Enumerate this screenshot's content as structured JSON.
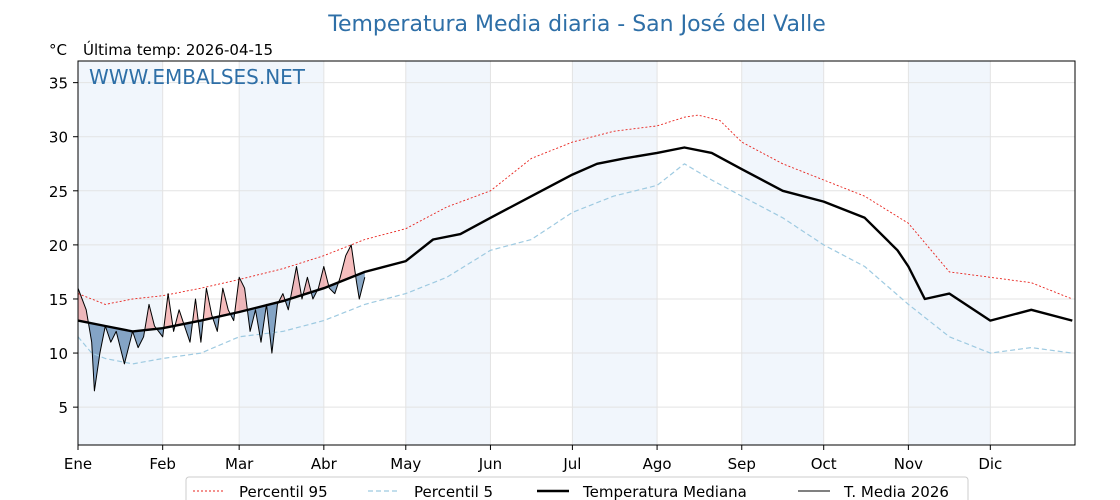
{
  "chart_data": {
    "type": "line",
    "title": "Temperatura Media diaria - San José del Valle",
    "ylabel": "°C",
    "subtitle": "Última temp: 2026-04-15",
    "watermark": "WWW.EMBALSES.NET",
    "ylim": [
      1.5,
      37
    ],
    "yticks": [
      5,
      10,
      15,
      20,
      25,
      30,
      35
    ],
    "x_unit": "day of year",
    "xlim": [
      0,
      365
    ],
    "months": [
      "Ene",
      "Feb",
      "Mar",
      "Abr",
      "May",
      "Jun",
      "Jul",
      "Ago",
      "Sep",
      "Oct",
      "Nov",
      "Dic"
    ],
    "month_starts": [
      0,
      31,
      59,
      90,
      120,
      151,
      181,
      212,
      243,
      273,
      304,
      334
    ],
    "grid": true,
    "legend_position": "bottom",
    "series": [
      {
        "name": "Percentil 95",
        "style": "dotted",
        "color": "#e8231d",
        "x": [
          0,
          10,
          20,
          31,
          45,
          59,
          75,
          90,
          105,
          120,
          135,
          151,
          166,
          181,
          196,
          212,
          222,
          227,
          235,
          243,
          258,
          273,
          288,
          304,
          319,
          334,
          349,
          364
        ],
        "y": [
          15.5,
          14.5,
          15.0,
          15.3,
          16.0,
          16.8,
          17.8,
          19.0,
          20.5,
          21.5,
          23.5,
          25.0,
          28.0,
          29.5,
          30.5,
          31.0,
          31.8,
          32.0,
          31.5,
          29.5,
          27.5,
          26.0,
          24.5,
          22.0,
          17.5,
          17.0,
          16.5,
          15.0
        ]
      },
      {
        "name": "Percentil 5",
        "style": "dashed",
        "color": "#9ecae1",
        "x": [
          0,
          5,
          10,
          20,
          31,
          45,
          59,
          75,
          90,
          105,
          120,
          135,
          151,
          166,
          181,
          196,
          212,
          222,
          232,
          243,
          258,
          273,
          288,
          304,
          319,
          334,
          349,
          364
        ],
        "y": [
          11.5,
          10.0,
          9.5,
          9.0,
          9.5,
          10.0,
          11.5,
          12.0,
          13.0,
          14.5,
          15.5,
          17.0,
          19.5,
          20.5,
          23.0,
          24.5,
          25.5,
          27.5,
          26.0,
          24.5,
          22.5,
          20.0,
          18.0,
          14.5,
          11.5,
          10.0,
          10.5,
          10.0
        ]
      },
      {
        "name": "Temperatura Mediana",
        "style": "solid-thick",
        "color": "#000000",
        "x": [
          0,
          10,
          20,
          31,
          45,
          59,
          75,
          90,
          105,
          120,
          130,
          140,
          151,
          166,
          181,
          190,
          200,
          212,
          222,
          232,
          243,
          258,
          273,
          288,
          300,
          304,
          310,
          319,
          334,
          349,
          364
        ],
        "y": [
          13.0,
          12.5,
          12.0,
          12.3,
          13.0,
          13.8,
          14.8,
          16.0,
          17.5,
          18.5,
          20.5,
          21.0,
          22.5,
          24.5,
          26.5,
          27.5,
          28.0,
          28.5,
          29.0,
          28.5,
          27.0,
          25.0,
          24.0,
          22.5,
          19.5,
          18.0,
          15.0,
          15.5,
          13.0,
          14.0,
          13.0
        ]
      },
      {
        "name": "T. Media 2026",
        "style": "solid-thin",
        "color": "#000000",
        "x": [
          0,
          3,
          5,
          6,
          8,
          10,
          12,
          14,
          17,
          20,
          22,
          24,
          26,
          28,
          31,
          33,
          35,
          37,
          39,
          41,
          43,
          45,
          47,
          49,
          51,
          53,
          55,
          57,
          59,
          61,
          63,
          65,
          67,
          69,
          71,
          73,
          75,
          77,
          80,
          82,
          84,
          86,
          88,
          90,
          92,
          94,
          96,
          98,
          100,
          102,
          103,
          105
        ],
        "y": [
          16.0,
          14.0,
          11.0,
          6.5,
          10.0,
          12.5,
          11.0,
          12.0,
          9.0,
          12.0,
          10.5,
          11.5,
          14.5,
          12.5,
          11.5,
          15.5,
          12.0,
          14.0,
          12.5,
          11.0,
          15.0,
          11.0,
          16.0,
          13.5,
          12.0,
          16.0,
          14.0,
          13.0,
          17.0,
          16.0,
          12.0,
          14.0,
          11.0,
          14.5,
          10.0,
          14.5,
          15.5,
          14.0,
          18.0,
          15.0,
          17.0,
          15.0,
          16.0,
          18.0,
          16.0,
          15.5,
          17.0,
          19.0,
          20.0,
          16.5,
          15.0,
          17.0
        ]
      }
    ]
  }
}
